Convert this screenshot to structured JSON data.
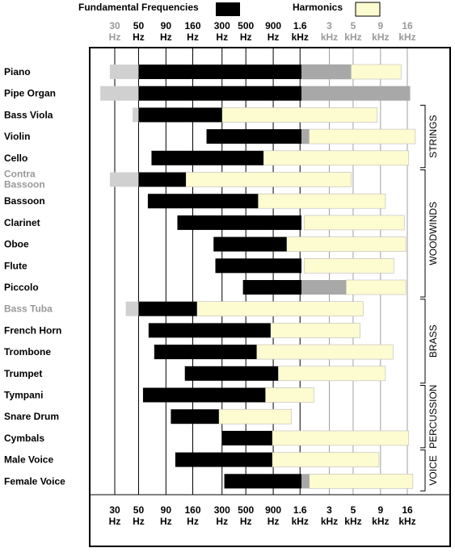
{
  "legend": {
    "fundamental_label": "Fundamental Frequencies",
    "harmonics_label": "Harmonics",
    "fundamental_color": "#000000",
    "harmonics_color": "#fdfbd0"
  },
  "colors": {
    "faded_fundamental": "#d0d0d0",
    "faded_harmonic": "#a8a8a8",
    "muted_text": "#999999",
    "text": "#000000"
  },
  "chart_data": {
    "type": "bar",
    "orientation": "horizontal",
    "xscale": "log",
    "xunit": "Hz",
    "xlim": [
      20,
      22000
    ],
    "ticks": [
      {
        "value": 30,
        "line1": "30",
        "line2": "Hz",
        "muted_top": true
      },
      {
        "value": 50,
        "line1": "50",
        "line2": "Hz",
        "muted_top": false
      },
      {
        "value": 90,
        "line1": "90",
        "line2": "Hz",
        "muted_top": false
      },
      {
        "value": 160,
        "line1": "160",
        "line2": "Hz",
        "muted_top": false
      },
      {
        "value": 300,
        "line1": "300",
        "line2": "Hz",
        "muted_top": false
      },
      {
        "value": 500,
        "line1": "500",
        "line2": "Hz",
        "muted_top": false
      },
      {
        "value": 900,
        "line1": "900",
        "line2": "Hz",
        "muted_top": false
      },
      {
        "value": 1600,
        "line1": "1.6",
        "line2": "kHz",
        "muted_top": false
      },
      {
        "value": 3000,
        "line1": "3",
        "line2": "kHz",
        "muted_top": true
      },
      {
        "value": 5000,
        "line1": "5",
        "line2": "kHz",
        "muted_top": true
      },
      {
        "value": 9000,
        "line1": "9",
        "line2": "kHz",
        "muted_top": true
      },
      {
        "value": 16000,
        "line1": "16",
        "line2": "kHz",
        "muted_top": true
      }
    ],
    "instruments": [
      {
        "name": "Piano",
        "fund": [
          50,
          1650
        ],
        "harm": [
          1650,
          14000
        ],
        "ext_fund": [
          27,
          50
        ],
        "ext_harm": [
          1650,
          4800
        ],
        "muted": false
      },
      {
        "name": "Pipe Organ",
        "fund": [
          50,
          1650
        ],
        "harm": [],
        "ext_fund": [
          22,
          50
        ],
        "ext_harm": [
          1650,
          17000
        ],
        "muted": false
      },
      {
        "name": "Bass Viola",
        "fund": [
          50,
          300
        ],
        "harm": [
          300,
          8400
        ],
        "ext_fund": [
          44,
          50
        ],
        "ext_harm": [],
        "muted": false
      },
      {
        "name": "Violin",
        "fund": [
          215,
          1650
        ],
        "harm": [
          1650,
          19000
        ],
        "ext_fund": [],
        "ext_harm": [
          1650,
          1950
        ],
        "muted": false
      },
      {
        "name": "Cello",
        "fund": [
          66,
          730
        ],
        "harm": [
          730,
          16500
        ],
        "ext_fund": [],
        "ext_harm": [],
        "muted": false
      },
      {
        "name": "Contra Bassoon",
        "fund": [
          50,
          138
        ],
        "harm": [
          138,
          4800
        ],
        "ext_fund": [
          27,
          50
        ],
        "ext_harm": [],
        "muted": true
      },
      {
        "name": "Bassoon",
        "fund": [
          61,
          650
        ],
        "harm": [
          650,
          10000
        ],
        "ext_fund": [],
        "ext_harm": [],
        "muted": false
      },
      {
        "name": "Clarinet",
        "fund": [
          115,
          1650
        ],
        "harm": [
          1750,
          15000
        ],
        "ext_fund": [],
        "ext_harm": [],
        "muted": false
      },
      {
        "name": "Oboe",
        "fund": [
          250,
          1200
        ],
        "harm": [
          1200,
          15500
        ],
        "ext_fund": [],
        "ext_harm": [],
        "muted": false
      },
      {
        "name": "Flute",
        "fund": [
          260,
          1650
        ],
        "harm": [
          1750,
          12000
        ],
        "ext_fund": [],
        "ext_harm": [],
        "muted": false
      },
      {
        "name": "Piccolo",
        "fund": [
          470,
          1650
        ],
        "harm": [
          4300,
          15500
        ],
        "ext_fund": [],
        "ext_harm": [
          1650,
          4300
        ],
        "muted": false
      },
      {
        "name": "Bass Tuba",
        "fund": [
          50,
          175
        ],
        "harm": [
          175,
          6200
        ],
        "ext_fund": [
          38,
          50
        ],
        "ext_harm": [],
        "muted": true
      },
      {
        "name": "French Horn",
        "fund": [
          62,
          850
        ],
        "harm": [
          850,
          5800
        ],
        "ext_fund": [],
        "ext_harm": [],
        "muted": false
      },
      {
        "name": "Trombone",
        "fund": [
          70,
          630
        ],
        "harm": [
          630,
          11800
        ],
        "ext_fund": [],
        "ext_harm": [],
        "muted": false
      },
      {
        "name": "Trumpet",
        "fund": [
          135,
          1000
        ],
        "harm": [
          1000,
          10000
        ],
        "ext_fund": [],
        "ext_harm": [],
        "muted": false
      },
      {
        "name": "Tympani",
        "fund": [
          55,
          760
        ],
        "harm": [
          760,
          2150
        ],
        "ext_fund": [],
        "ext_harm": [],
        "muted": false
      },
      {
        "name": "Snare Drum",
        "fund": [
          100,
          280
        ],
        "harm": [
          280,
          1330
        ],
        "ext_fund": [],
        "ext_harm": [],
        "muted": false
      },
      {
        "name": "Cymbals",
        "fund": [
          300,
          880
        ],
        "harm": [
          880,
          16500
        ],
        "ext_fund": [],
        "ext_harm": [],
        "muted": false
      },
      {
        "name": "Male Voice",
        "fund": [
          110,
          880
        ],
        "harm": [
          880,
          8700
        ],
        "ext_fund": [],
        "ext_harm": [],
        "muted": false
      },
      {
        "name": "Female Voice",
        "fund": [
          315,
          1650
        ],
        "harm": [
          1950,
          18000
        ],
        "ext_fund": [],
        "ext_harm": [
          1650,
          1950
        ],
        "muted": false
      }
    ],
    "groups": [
      {
        "label": "STRINGS",
        "from": "Bass Viola",
        "to": "Cello"
      },
      {
        "label": "WOODWINDS",
        "from": "Contra Bassoon",
        "to": "Piccolo"
      },
      {
        "label": "BRASS",
        "from": "Bass Tuba",
        "to": "Trumpet"
      },
      {
        "label": "PERCUSSION",
        "from": "Tympani",
        "to": "Cymbals"
      },
      {
        "label": "VOICE",
        "from": "Male Voice",
        "to": "Female Voice"
      }
    ]
  }
}
